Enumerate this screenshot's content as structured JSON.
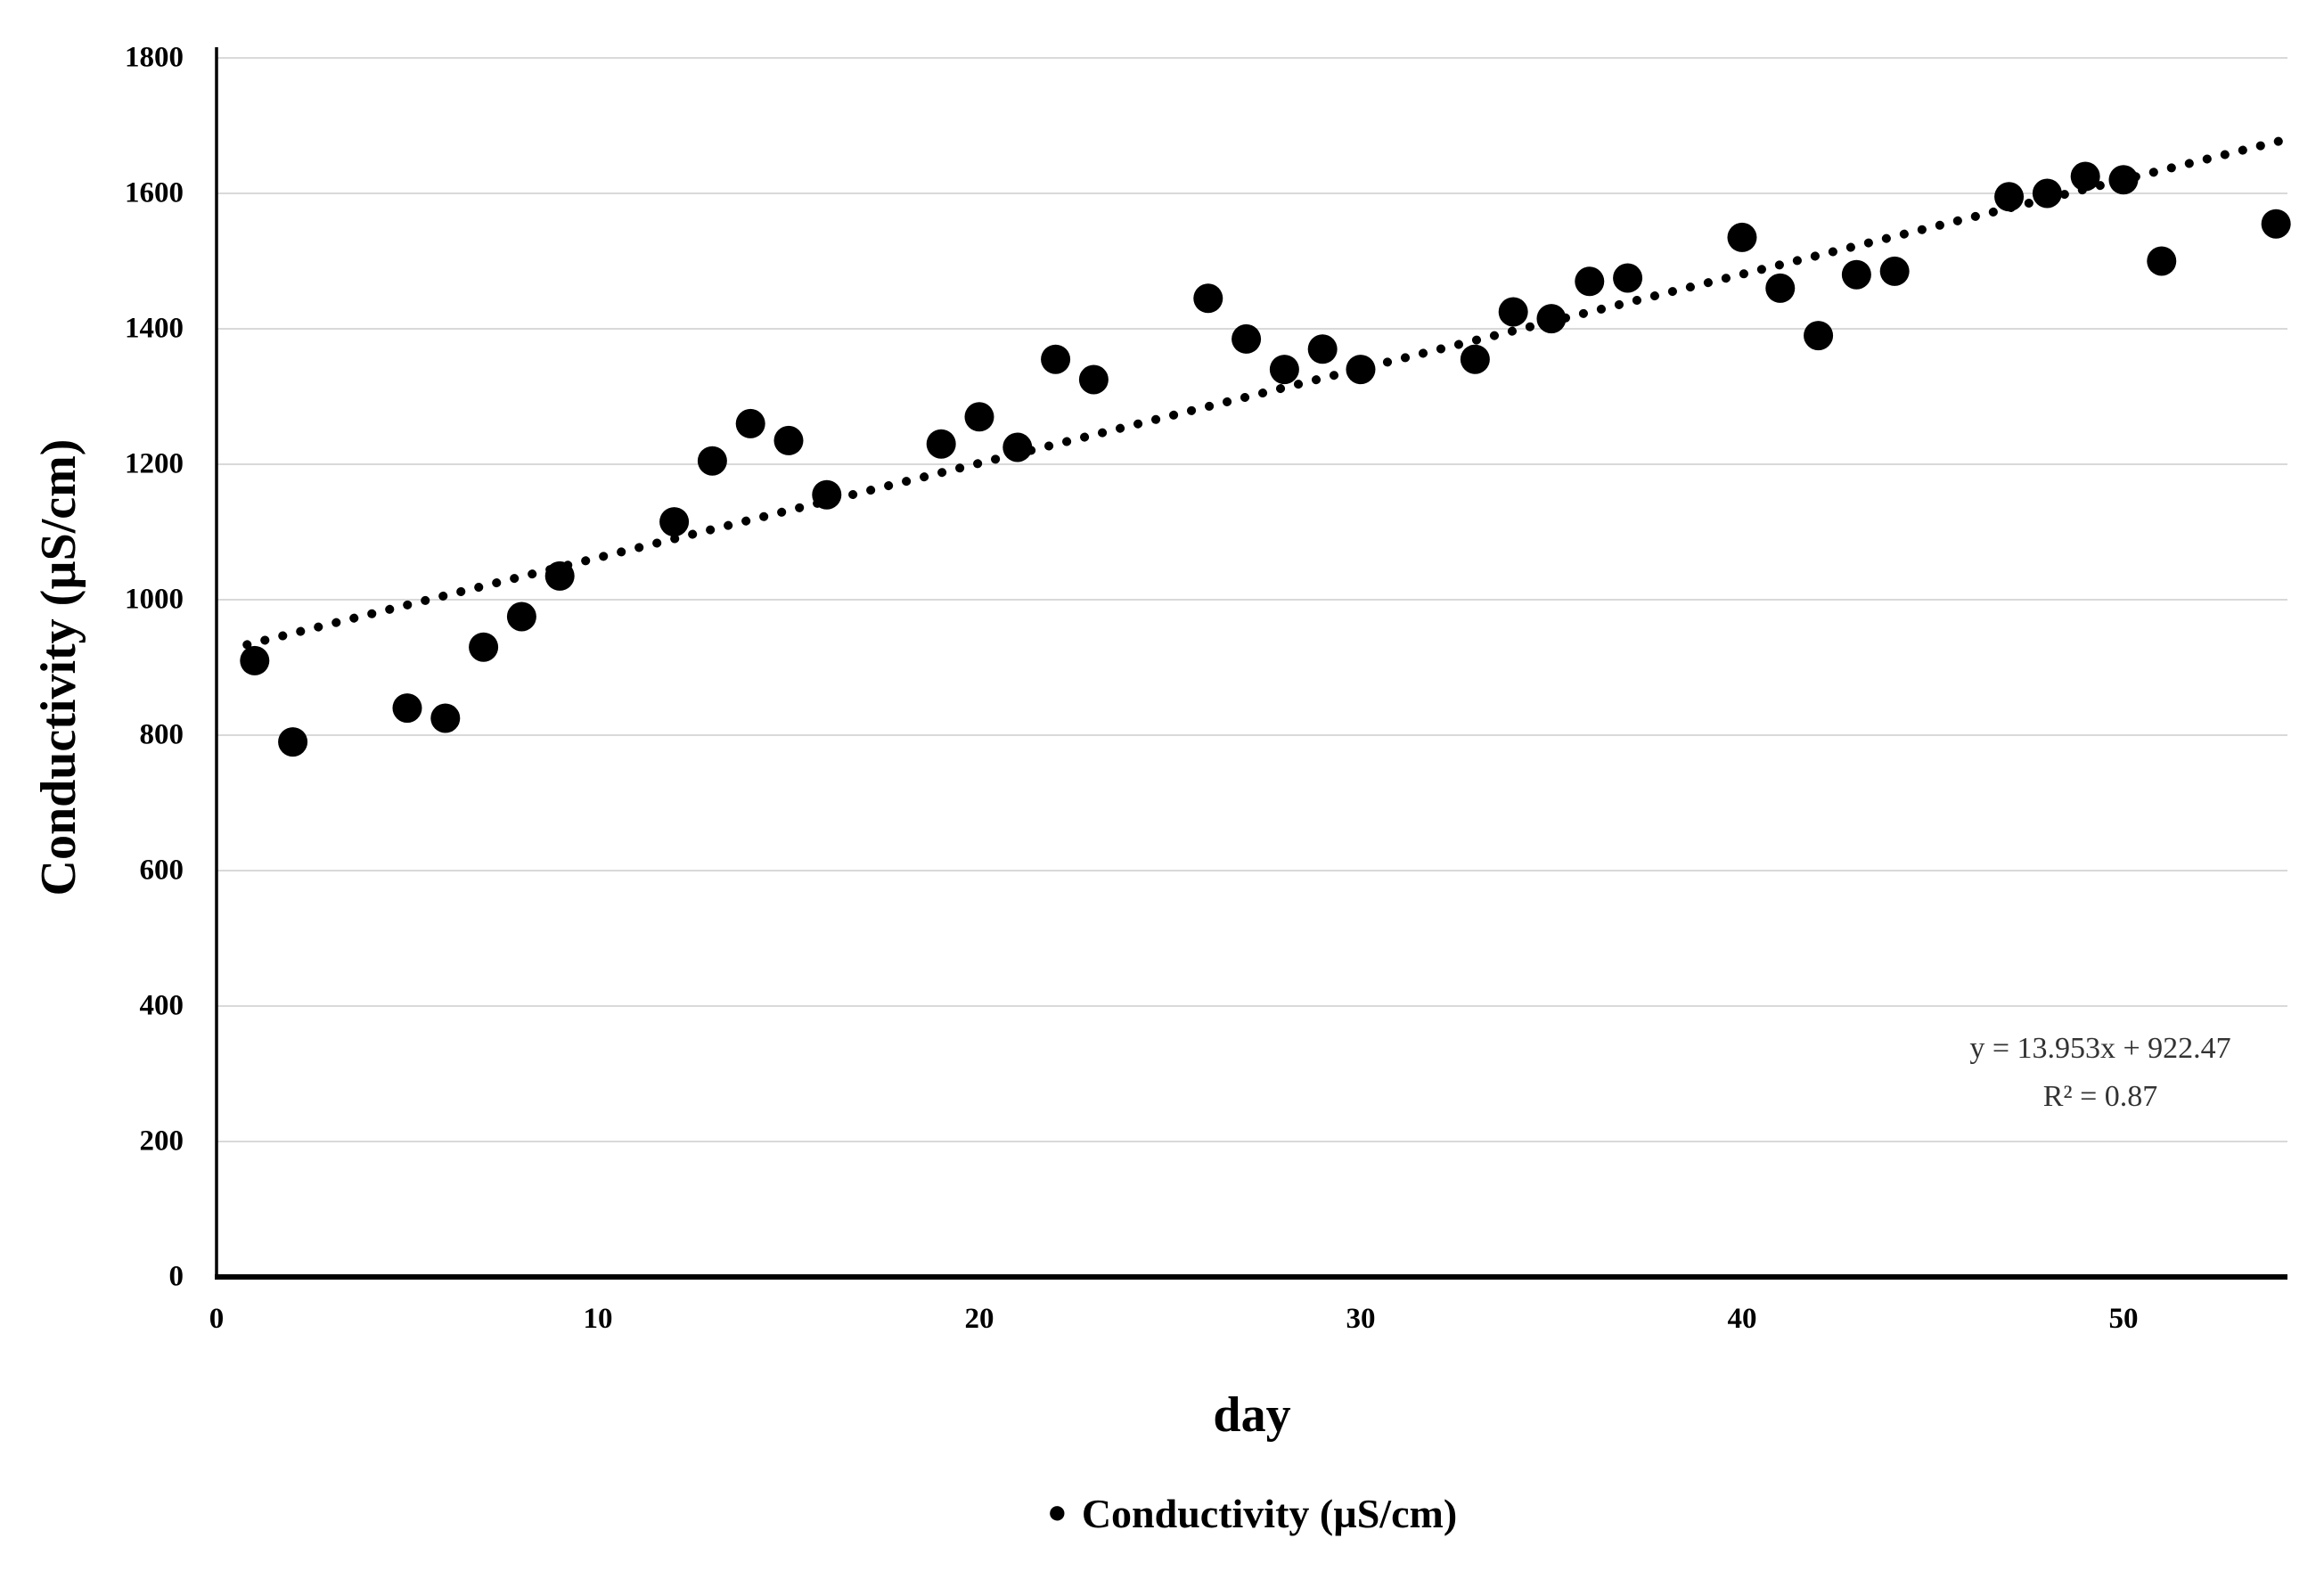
{
  "colors": {
    "background": "#ffffff",
    "gridline": "#d9d9d9",
    "axis_line": "#000000",
    "point": "#000000",
    "trendline": "#000000",
    "text": "#000000",
    "equation_text": "#333333"
  },
  "legend": {
    "marker_glyph": "●",
    "label": "Conductivity (µS/cm)"
  },
  "chart_data": {
    "type": "scatter",
    "title": "",
    "xlabel": "day",
    "ylabel": "Conductivity (µS/cm)",
    "xlim": [
      0,
      54.3
    ],
    "ylim": [
      0,
      1800
    ],
    "x_ticks": [
      0,
      10,
      20,
      30,
      40,
      50
    ],
    "y_ticks": [
      0,
      200,
      400,
      600,
      800,
      1000,
      1200,
      1400,
      1600,
      1800
    ],
    "grid": "horizontal",
    "legend_position": "bottom-center",
    "series": [
      {
        "name": "Conductivity (µS/cm)",
        "marker": "filled-circle",
        "color": "#000000",
        "points": [
          [
            1,
            910
          ],
          [
            2,
            790
          ],
          [
            5,
            840
          ],
          [
            6,
            825
          ],
          [
            7,
            930
          ],
          [
            8,
            975
          ],
          [
            9,
            1035
          ],
          [
            12,
            1115
          ],
          [
            13,
            1205
          ],
          [
            14,
            1260
          ],
          [
            15,
            1235
          ],
          [
            16,
            1155
          ],
          [
            19,
            1230
          ],
          [
            20,
            1270
          ],
          [
            21,
            1225
          ],
          [
            22,
            1355
          ],
          [
            23,
            1325
          ],
          [
            26,
            1445
          ],
          [
            27,
            1385
          ],
          [
            28,
            1340
          ],
          [
            29,
            1370
          ],
          [
            30,
            1340
          ],
          [
            33,
            1355
          ],
          [
            34,
            1425
          ],
          [
            35,
            1415
          ],
          [
            36,
            1470
          ],
          [
            37,
            1475
          ],
          [
            40,
            1535
          ],
          [
            41,
            1460
          ],
          [
            42,
            1390
          ],
          [
            43,
            1480
          ],
          [
            44,
            1485
          ],
          [
            47,
            1595
          ],
          [
            48,
            1600
          ],
          [
            49,
            1625
          ],
          [
            50,
            1620
          ],
          [
            51,
            1500
          ],
          [
            54,
            1555
          ]
        ]
      }
    ],
    "trendline": {
      "type": "linear",
      "slope": 13.953,
      "intercept": 922.47,
      "r_squared": 0.87,
      "style": "dotted",
      "color": "#000000",
      "x_start": 0.8,
      "x_end": 54.1,
      "label_lines": [
        "y = 13.953x + 922.47",
        "R² = 0.87"
      ]
    }
  }
}
